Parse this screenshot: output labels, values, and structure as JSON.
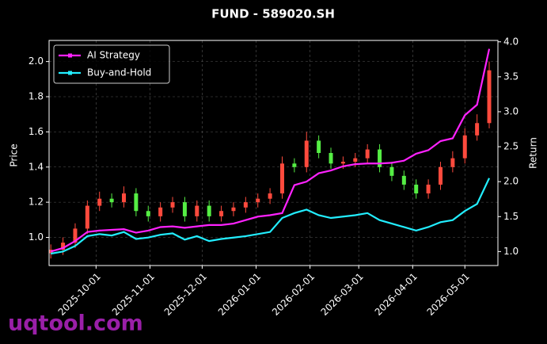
{
  "chart_data": {
    "type": "candlestick",
    "title": "FUND - 589020.SH",
    "ylabel": "Price",
    "y2label": "Return",
    "watermark": "uqtool.com",
    "x": [
      "2025-09-05",
      "2025-09-12",
      "2025-09-19",
      "2025-09-26",
      "2025-10-03",
      "2025-10-10",
      "2025-10-17",
      "2025-10-24",
      "2025-10-31",
      "2025-11-07",
      "2025-11-14",
      "2025-11-21",
      "2025-11-28",
      "2025-12-05",
      "2025-12-12",
      "2025-12-19",
      "2025-12-26",
      "2026-01-02",
      "2026-01-09",
      "2026-01-16",
      "2026-01-23",
      "2026-01-30",
      "2026-02-06",
      "2026-02-13",
      "2026-02-20",
      "2026-02-27",
      "2026-03-06",
      "2026-03-13",
      "2026-03-20",
      "2026-03-27",
      "2026-04-03",
      "2026-04-10",
      "2026-04-17",
      "2026-04-24",
      "2026-05-01",
      "2026-05-08",
      "2026-05-15"
    ],
    "open": [
      0.91,
      0.93,
      0.97,
      1.05,
      1.18,
      1.22,
      1.2,
      1.25,
      1.15,
      1.12,
      1.17,
      1.2,
      1.12,
      1.18,
      1.12,
      1.15,
      1.17,
      1.2,
      1.22,
      1.25,
      1.42,
      1.4,
      1.55,
      1.48,
      1.42,
      1.43,
      1.45,
      1.5,
      1.4,
      1.35,
      1.3,
      1.25,
      1.3,
      1.4,
      1.45,
      1.58,
      1.65
    ],
    "high": [
      0.96,
      1.0,
      1.08,
      1.21,
      1.26,
      1.25,
      1.29,
      1.28,
      1.18,
      1.2,
      1.23,
      1.23,
      1.21,
      1.21,
      1.18,
      1.2,
      1.23,
      1.25,
      1.28,
      1.46,
      1.45,
      1.6,
      1.58,
      1.51,
      1.46,
      1.48,
      1.53,
      1.53,
      1.43,
      1.38,
      1.33,
      1.33,
      1.43,
      1.49,
      1.62,
      1.7,
      2.0
    ],
    "low": [
      0.88,
      0.9,
      0.94,
      1.02,
      1.15,
      1.17,
      1.17,
      1.12,
      1.09,
      1.09,
      1.14,
      1.09,
      1.09,
      1.09,
      1.09,
      1.12,
      1.14,
      1.17,
      1.19,
      1.22,
      1.37,
      1.37,
      1.45,
      1.39,
      1.39,
      1.4,
      1.42,
      1.37,
      1.32,
      1.27,
      1.22,
      1.22,
      1.27,
      1.37,
      1.42,
      1.55,
      1.62
    ],
    "close": [
      0.93,
      0.97,
      1.05,
      1.18,
      1.22,
      1.2,
      1.25,
      1.15,
      1.12,
      1.17,
      1.2,
      1.12,
      1.18,
      1.12,
      1.15,
      1.17,
      1.2,
      1.22,
      1.25,
      1.42,
      1.4,
      1.55,
      1.48,
      1.42,
      1.43,
      1.45,
      1.5,
      1.4,
      1.35,
      1.3,
      1.25,
      1.3,
      1.4,
      1.45,
      1.58,
      1.65,
      1.95
    ],
    "up_color": "#ff4a3d",
    "down_color": "#55ee44",
    "series": [
      {
        "name": "AI Strategy",
        "type": "line",
        "axis": "y2",
        "color": "#ff22ff",
        "values": [
          1.0,
          1.05,
          1.15,
          1.28,
          1.3,
          1.31,
          1.32,
          1.27,
          1.3,
          1.35,
          1.36,
          1.34,
          1.36,
          1.38,
          1.38,
          1.4,
          1.45,
          1.5,
          1.52,
          1.55,
          1.95,
          2.0,
          2.12,
          2.16,
          2.22,
          2.25,
          2.26,
          2.26,
          2.27,
          2.3,
          2.4,
          2.45,
          2.58,
          2.62,
          2.95,
          3.1,
          3.9
        ]
      },
      {
        "name": "Buy-and-Hold",
        "type": "line",
        "axis": "y2",
        "color": "#22eeff",
        "values": [
          0.97,
          1.0,
          1.08,
          1.22,
          1.25,
          1.23,
          1.28,
          1.18,
          1.2,
          1.24,
          1.26,
          1.17,
          1.22,
          1.15,
          1.18,
          1.2,
          1.22,
          1.25,
          1.28,
          1.48,
          1.55,
          1.6,
          1.52,
          1.48,
          1.5,
          1.52,
          1.55,
          1.45,
          1.4,
          1.35,
          1.3,
          1.35,
          1.42,
          1.45,
          1.58,
          1.68,
          2.05
        ]
      }
    ],
    "xlim": [
      "2025-09-04",
      "2026-05-20"
    ],
    "xticks": [
      "2025-10-01",
      "2025-11-01",
      "2025-12-01",
      "2026-01-01",
      "2026-02-01",
      "2026-03-01",
      "2026-04-01",
      "2026-05-01"
    ],
    "ylim": [
      0.84,
      2.12
    ],
    "yticks": [
      {
        "value": 1.0,
        "label": "1.0"
      },
      {
        "value": 1.2,
        "label": "1.2"
      },
      {
        "value": 1.4,
        "label": "1.4"
      },
      {
        "value": 1.6,
        "label": "1.6"
      },
      {
        "value": 1.8,
        "label": "1.8"
      },
      {
        "value": 2.0,
        "label": "2.0"
      }
    ],
    "y2lim": [
      0.8,
      4.02
    ],
    "y2ticks": [
      {
        "value": 1.0,
        "label": "1.0"
      },
      {
        "value": 1.5,
        "label": "1.5"
      },
      {
        "value": 2.0,
        "label": "2.0"
      },
      {
        "value": 2.5,
        "label": "2.5"
      },
      {
        "value": 3.0,
        "label": "3.0"
      },
      {
        "value": 3.5,
        "label": "3.5"
      },
      {
        "value": 4.0,
        "label": "4.0"
      }
    ],
    "grid": true,
    "legend": "upper left"
  }
}
